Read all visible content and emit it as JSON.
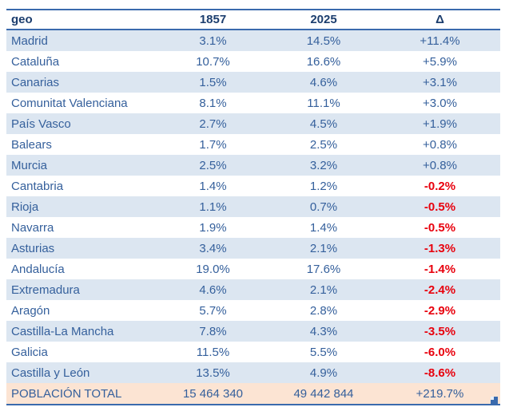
{
  "colors": {
    "page_bg": "#ffffff",
    "accent_border": "#3a6aad",
    "stripe_row_bg": "#dce6f1",
    "total_row_bg": "#fce4d3",
    "body_text": "#35609c",
    "header_text": "#1c3e6e",
    "negative_delta": "#e8000d"
  },
  "icons": {
    "table_resize_handle": "table-resize-handle"
  },
  "chart_data": {
    "type": "table",
    "title": "",
    "columns": [
      "geo",
      "1857",
      "2025",
      "Δ"
    ],
    "rows": [
      {
        "geo": "Madrid",
        "y1857": "3.1%",
        "y2025": "14.5%",
        "delta": "+11.4%"
      },
      {
        "geo": "Cataluña",
        "y1857": "10.7%",
        "y2025": "16.6%",
        "delta": "+5.9%"
      },
      {
        "geo": "Canarias",
        "y1857": "1.5%",
        "y2025": "4.6%",
        "delta": "+3.1%"
      },
      {
        "geo": "Comunitat Valenciana",
        "y1857": "8.1%",
        "y2025": "11.1%",
        "delta": "+3.0%"
      },
      {
        "geo": "País Vasco",
        "y1857": "2.7%",
        "y2025": "4.5%",
        "delta": "+1.9%"
      },
      {
        "geo": "Balears",
        "y1857": "1.7%",
        "y2025": "2.5%",
        "delta": "+0.8%"
      },
      {
        "geo": "Murcia",
        "y1857": "2.5%",
        "y2025": "3.2%",
        "delta": "+0.8%"
      },
      {
        "geo": "Cantabria",
        "y1857": "1.4%",
        "y2025": "1.2%",
        "delta": "-0.2%"
      },
      {
        "geo": "Rioja",
        "y1857": "1.1%",
        "y2025": "0.7%",
        "delta": "-0.5%"
      },
      {
        "geo": "Navarra",
        "y1857": "1.9%",
        "y2025": "1.4%",
        "delta": "-0.5%"
      },
      {
        "geo": "Asturias",
        "y1857": "3.4%",
        "y2025": "2.1%",
        "delta": "-1.3%"
      },
      {
        "geo": "Andalucía",
        "y1857": "19.0%",
        "y2025": "17.6%",
        "delta": "-1.4%"
      },
      {
        "geo": "Extremadura",
        "y1857": "4.6%",
        "y2025": "2.1%",
        "delta": "-2.4%"
      },
      {
        "geo": "Aragón",
        "y1857": "5.7%",
        "y2025": "2.8%",
        "delta": "-2.9%"
      },
      {
        "geo": "Castilla-La Mancha",
        "y1857": "7.8%",
        "y2025": "4.3%",
        "delta": "-3.5%"
      },
      {
        "geo": "Galicia",
        "y1857": "11.5%",
        "y2025": "5.5%",
        "delta": "-6.0%"
      },
      {
        "geo": "Castilla y León",
        "y1857": "13.5%",
        "y2025": "4.9%",
        "delta": "-8.6%"
      }
    ],
    "total": {
      "geo": "POBLACIÓN TOTAL",
      "y1857": "15 464 340",
      "y2025": "49 442 844",
      "delta": "+219.7%"
    }
  }
}
